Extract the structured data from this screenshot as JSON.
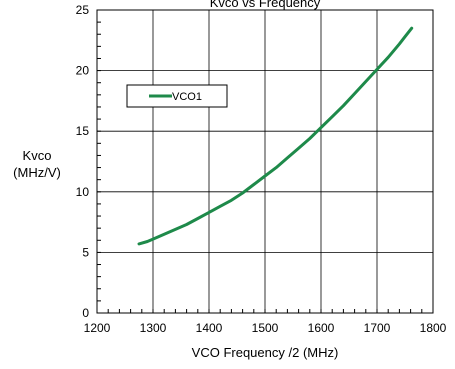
{
  "chart_data": {
    "type": "line",
    "title": "Kvco vs Frequency",
    "xlabel": "VCO Frequency /2 (MHz)",
    "ylabel_line1": "Kvco",
    "ylabel_line2": "(MHz/V)",
    "xlim": [
      1200,
      1800
    ],
    "ylim": [
      0,
      25
    ],
    "x_ticks": [
      1200,
      1300,
      1400,
      1500,
      1600,
      1700,
      1800
    ],
    "y_ticks": [
      0,
      5,
      10,
      15,
      20,
      25
    ],
    "grid": true,
    "legend_position": "upper-left",
    "series": [
      {
        "name": "VCO1",
        "color": "#1e8a4a",
        "points": [
          [
            1275,
            5.7
          ],
          [
            1290,
            5.9
          ],
          [
            1300,
            6.1
          ],
          [
            1320,
            6.5
          ],
          [
            1340,
            6.9
          ],
          [
            1360,
            7.3
          ],
          [
            1380,
            7.8
          ],
          [
            1400,
            8.3
          ],
          [
            1420,
            8.8
          ],
          [
            1440,
            9.3
          ],
          [
            1460,
            9.9
          ],
          [
            1480,
            10.6
          ],
          [
            1500,
            11.3
          ],
          [
            1520,
            12.0
          ],
          [
            1540,
            12.8
          ],
          [
            1560,
            13.6
          ],
          [
            1580,
            14.4
          ],
          [
            1600,
            15.3
          ],
          [
            1620,
            16.2
          ],
          [
            1640,
            17.1
          ],
          [
            1660,
            18.1
          ],
          [
            1680,
            19.1
          ],
          [
            1700,
            20.1
          ],
          [
            1720,
            21.1
          ],
          [
            1740,
            22.2
          ],
          [
            1750,
            22.8
          ],
          [
            1762,
            23.5
          ]
        ]
      }
    ]
  }
}
